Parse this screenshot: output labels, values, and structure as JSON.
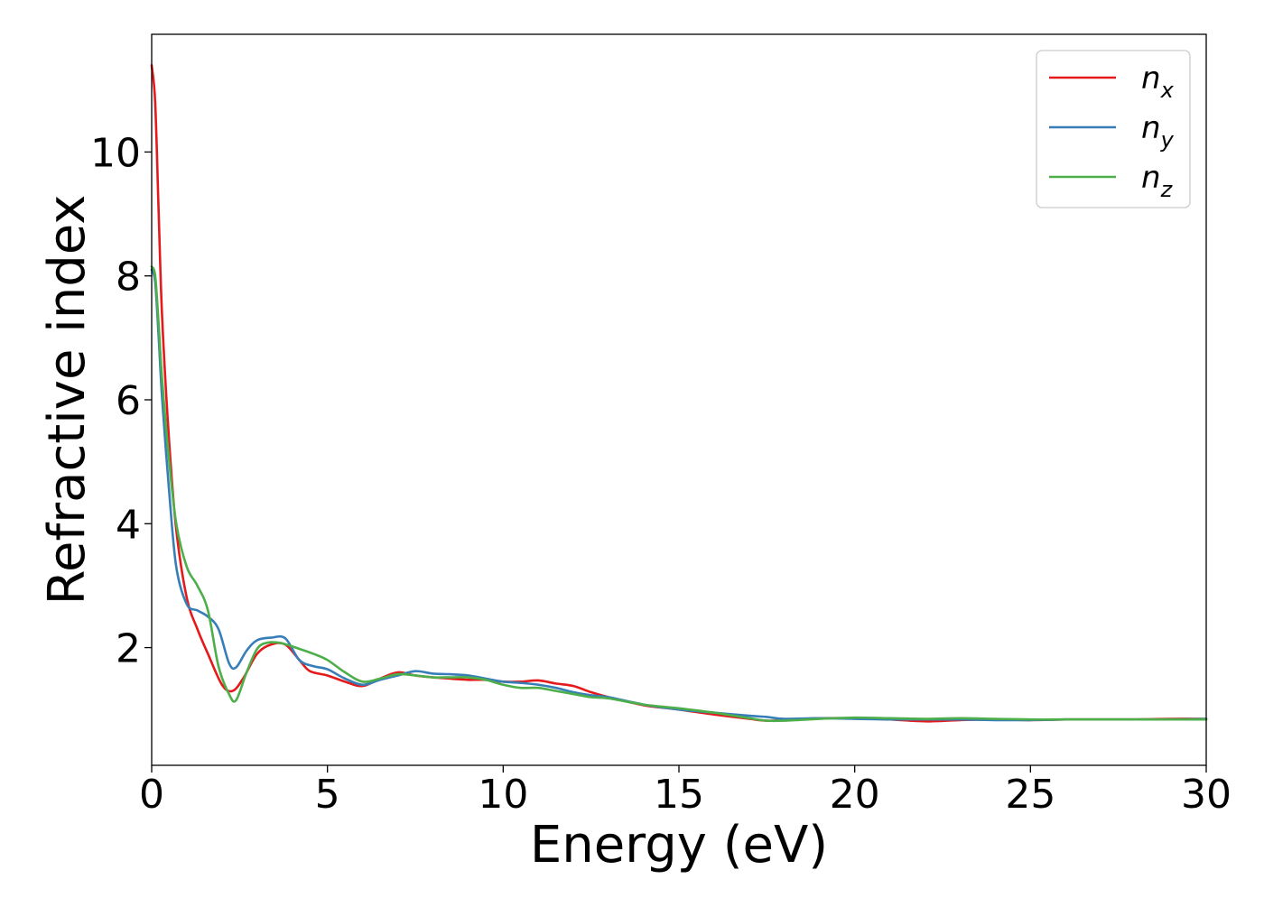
{
  "chart_data": {
    "type": "line",
    "title": "",
    "xlabel": "Energy (eV)",
    "ylabel": "Refractive index",
    "xlim": [
      0,
      30
    ],
    "ylim": [
      0.1,
      11.9
    ],
    "xticks": [
      0,
      5,
      10,
      15,
      20,
      25,
      30
    ],
    "yticks": [
      2,
      4,
      6,
      8,
      10
    ],
    "grid": false,
    "legend_position": "top-right",
    "series": [
      {
        "name": "n_x",
        "label_base": "n",
        "label_sub": "x",
        "color": "#e41a1c",
        "x": [
          0,
          0.1,
          0.2,
          0.3,
          0.5,
          0.7,
          1.0,
          1.3,
          1.6,
          2.0,
          2.3,
          2.6,
          3.0,
          3.4,
          3.8,
          4.2,
          4.5,
          5.0,
          5.5,
          6.0,
          6.5,
          7.0,
          7.5,
          8.0,
          8.5,
          9.0,
          9.5,
          10.0,
          10.5,
          11.0,
          11.5,
          12.0,
          12.5,
          13.0,
          14.0,
          15.0,
          16.0,
          17.0,
          17.5,
          18.0,
          19.0,
          20.0,
          21.0,
          22.0,
          23.0,
          24.0,
          25.0,
          26.0,
          27.0,
          28.0,
          29.0,
          30.0
        ],
        "y": [
          11.4,
          10.8,
          9.0,
          7.3,
          5.3,
          3.9,
          2.8,
          2.3,
          1.9,
          1.4,
          1.3,
          1.5,
          1.9,
          2.05,
          2.05,
          1.8,
          1.62,
          1.55,
          1.45,
          1.38,
          1.5,
          1.6,
          1.55,
          1.52,
          1.5,
          1.48,
          1.48,
          1.45,
          1.45,
          1.47,
          1.42,
          1.38,
          1.28,
          1.2,
          1.07,
          1.0,
          0.92,
          0.85,
          0.82,
          0.83,
          0.86,
          0.86,
          0.84,
          0.81,
          0.83,
          0.84,
          0.83,
          0.84,
          0.84,
          0.84,
          0.85,
          0.85
        ]
      },
      {
        "name": "n_y",
        "label_base": "n",
        "label_sub": "y",
        "color": "#377eb8",
        "x": [
          0,
          0.1,
          0.2,
          0.3,
          0.5,
          0.7,
          1.0,
          1.3,
          1.6,
          1.9,
          2.2,
          2.4,
          2.7,
          3.0,
          3.4,
          3.8,
          4.2,
          4.6,
          5.0,
          5.5,
          6.0,
          6.5,
          7.0,
          7.5,
          8.0,
          8.5,
          9.0,
          9.5,
          10.0,
          10.5,
          11.0,
          11.5,
          12.0,
          12.5,
          13.0,
          14.0,
          15.0,
          16.0,
          17.0,
          17.5,
          18.0,
          19.0,
          20.0,
          21.0,
          22.0,
          23.0,
          24.0,
          25.0,
          26.0,
          27.0,
          28.0,
          29.0,
          30.0
        ],
        "y": [
          8.1,
          7.9,
          7.0,
          6.0,
          4.5,
          3.3,
          2.7,
          2.6,
          2.5,
          2.3,
          1.75,
          1.68,
          1.95,
          2.12,
          2.16,
          2.15,
          1.8,
          1.7,
          1.65,
          1.5,
          1.4,
          1.48,
          1.55,
          1.62,
          1.58,
          1.57,
          1.55,
          1.5,
          1.45,
          1.43,
          1.4,
          1.35,
          1.28,
          1.23,
          1.2,
          1.08,
          1.0,
          0.95,
          0.9,
          0.88,
          0.85,
          0.86,
          0.85,
          0.84,
          0.84,
          0.84,
          0.83,
          0.83,
          0.84,
          0.84,
          0.84,
          0.84,
          0.85
        ]
      },
      {
        "name": "n_z",
        "label_base": "n",
        "label_sub": "z",
        "color": "#4daf4a",
        "x": [
          0,
          0.1,
          0.2,
          0.3,
          0.5,
          0.7,
          1.0,
          1.3,
          1.6,
          1.9,
          2.2,
          2.4,
          2.7,
          3.0,
          3.3,
          3.7,
          4.2,
          4.6,
          5.0,
          5.5,
          6.0,
          6.5,
          7.0,
          7.5,
          8.0,
          8.5,
          9.0,
          9.5,
          10.0,
          10.5,
          11.0,
          11.5,
          12.0,
          12.5,
          13.0,
          14.0,
          15.0,
          16.0,
          17.0,
          17.5,
          18.0,
          19.0,
          20.0,
          21.0,
          22.0,
          23.0,
          24.0,
          25.0,
          26.0,
          27.0,
          28.0,
          29.0,
          30.0
        ],
        "y": [
          8.15,
          8.0,
          7.2,
          6.3,
          5.0,
          4.0,
          3.3,
          3.0,
          2.6,
          1.7,
          1.25,
          1.15,
          1.6,
          1.98,
          2.08,
          2.07,
          1.98,
          1.9,
          1.8,
          1.6,
          1.45,
          1.5,
          1.57,
          1.55,
          1.52,
          1.52,
          1.52,
          1.48,
          1.4,
          1.35,
          1.35,
          1.3,
          1.25,
          1.2,
          1.18,
          1.08,
          1.02,
          0.95,
          0.86,
          0.82,
          0.82,
          0.85,
          0.87,
          0.86,
          0.85,
          0.86,
          0.85,
          0.84,
          0.84,
          0.84,
          0.84,
          0.84,
          0.84
        ]
      }
    ]
  }
}
